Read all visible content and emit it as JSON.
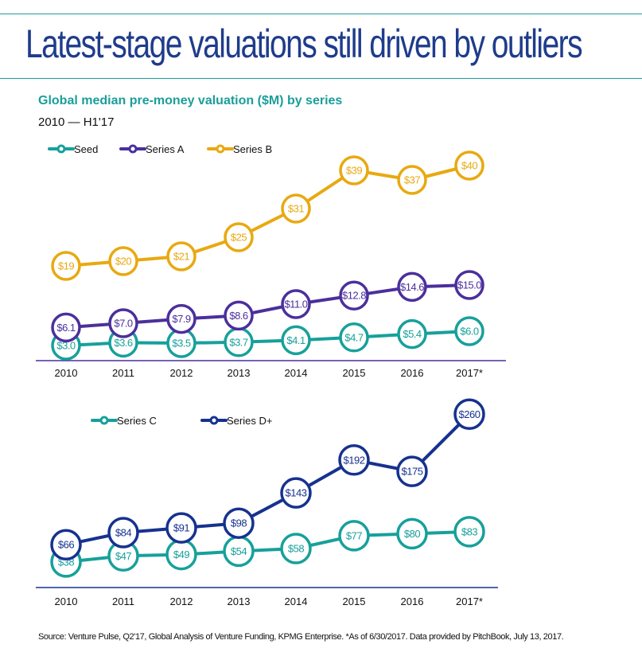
{
  "header": {
    "title": "Latest-stage valuations still driven by outliers",
    "subtitle": "Global median pre-money valuation ($M) by series",
    "range": "2010 — H1'17"
  },
  "footer": {
    "source": "Source: Venture Pulse, Q2'17, Global Analysis of Venture Funding, KPMG Enterprise. *As of 6/30/2017. Data provided by PitchBook, July 13, 2017."
  },
  "chart_data": [
    {
      "type": "line",
      "title": "Global median pre-money valuation ($M) by series — Seed, Series A, Series B",
      "xlabel": "",
      "ylabel": "",
      "grid": false,
      "legend": "top-left",
      "categories": [
        "2010",
        "2011",
        "2012",
        "2013",
        "2014",
        "2015",
        "2016",
        "2017*"
      ],
      "series": [
        {
          "name": "Seed",
          "color": "#17a09b",
          "values": [
            3.0,
            3.6,
            3.5,
            3.7,
            4.1,
            4.7,
            5.4,
            6.0
          ],
          "labels": [
            "$3.0",
            "$3.6",
            "$3.5",
            "$3.7",
            "$4.1",
            "$4.7",
            "$5.4",
            "$6.0"
          ]
        },
        {
          "name": "Series A",
          "color": "#4b2f9c",
          "values": [
            6.1,
            7.0,
            7.9,
            8.6,
            11.0,
            12.8,
            14.6,
            15.0
          ],
          "labels": [
            "$6.1",
            "$7.0",
            "$7.9",
            "$8.6",
            "$11.0",
            "$12.8",
            "$14.6",
            "$15.0"
          ]
        },
        {
          "name": "Series B",
          "color": "#e8a910",
          "values": [
            19,
            20,
            21,
            25,
            31,
            39,
            37,
            40
          ],
          "labels": [
            "$19",
            "$20",
            "$21",
            "$25",
            "$31",
            "$39",
            "$37",
            "$40"
          ]
        }
      ],
      "axis_color": "#4b2f9c"
    },
    {
      "type": "line",
      "title": "Global median pre-money valuation ($M) by series — Series C, Series D+",
      "xlabel": "",
      "ylabel": "",
      "grid": false,
      "legend": "top-left",
      "categories": [
        "2010",
        "2011",
        "2012",
        "2013",
        "2014",
        "2015",
        "2016",
        "2017*"
      ],
      "series": [
        {
          "name": "Series C",
          "color": "#17a09b",
          "values": [
            38,
            47,
            49,
            54,
            58,
            77,
            80,
            83
          ],
          "labels": [
            "$38",
            "$47",
            "$49",
            "$54",
            "$58",
            "$77",
            "$80",
            "$83"
          ]
        },
        {
          "name": "Series D+",
          "color": "#16328f",
          "values": [
            66,
            84,
            91,
            98,
            143,
            192,
            175,
            260
          ],
          "labels": [
            "$66",
            "$84",
            "$91",
            "$98",
            "$143",
            "$192",
            "$175",
            "$260"
          ]
        }
      ],
      "axis_color": "#16328f"
    }
  ]
}
